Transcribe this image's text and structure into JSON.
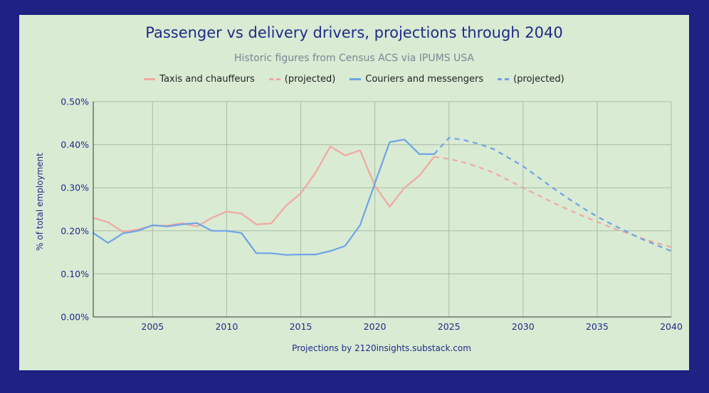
{
  "chart_data": {
    "type": "line",
    "title": "Passenger vs delivery drivers, projections through 2040",
    "subtitle": "Historic figures from Census ACS via IPUMS USA",
    "xlabel": "Projections by 2120insights.substack.com",
    "ylabel": "% of total employment",
    "xlim": [
      2001,
      2040
    ],
    "ylim": [
      0,
      0.5
    ],
    "x_ticks": [
      2005,
      2010,
      2015,
      2020,
      2025,
      2030,
      2035,
      2040
    ],
    "y_ticks": [
      0,
      0.1,
      0.2,
      0.3,
      0.4,
      0.5
    ],
    "y_tick_labels": [
      "0.00%",
      "0.10%",
      "0.20%",
      "0.30%",
      "0.40%",
      "0.50%"
    ],
    "grid": true,
    "legend_position": "top-center",
    "series": [
      {
        "name": "Taxis and chauffeurs",
        "color": "#f2a7a0",
        "dash": "solid",
        "x": [
          2001,
          2002,
          2003,
          2004,
          2005,
          2006,
          2007,
          2008,
          2009,
          2010,
          2011,
          2012,
          2013,
          2014,
          2015,
          2016,
          2017,
          2018,
          2019,
          2020,
          2021,
          2022,
          2023,
          2024
        ],
        "values": [
          0.23,
          0.22,
          0.198,
          0.203,
          0.212,
          0.212,
          0.218,
          0.21,
          0.23,
          0.245,
          0.24,
          0.215,
          0.217,
          0.258,
          0.287,
          0.335,
          0.396,
          0.375,
          0.387,
          0.305,
          0.256,
          0.3,
          0.328,
          0.372
        ]
      },
      {
        "name": "(projected)",
        "color": "#f2a7a0",
        "dash": "dashed",
        "x": [
          2024,
          2025,
          2026,
          2027,
          2028,
          2029,
          2030,
          2031,
          2032,
          2033,
          2034,
          2035,
          2036,
          2037,
          2038,
          2039,
          2040
        ],
        "values": [
          0.372,
          0.367,
          0.359,
          0.348,
          0.335,
          0.318,
          0.3,
          0.283,
          0.266,
          0.25,
          0.235,
          0.221,
          0.207,
          0.195,
          0.183,
          0.172,
          0.162
        ]
      },
      {
        "name": "Couriers and messengers",
        "color": "#6fa3e6",
        "dash": "solid",
        "x": [
          2001,
          2002,
          2003,
          2004,
          2005,
          2006,
          2007,
          2008,
          2009,
          2010,
          2011,
          2012,
          2013,
          2014,
          2015,
          2016,
          2017,
          2018,
          2019,
          2020,
          2021,
          2022,
          2023,
          2024
        ],
        "values": [
          0.195,
          0.172,
          0.194,
          0.2,
          0.213,
          0.21,
          0.215,
          0.218,
          0.2,
          0.2,
          0.195,
          0.148,
          0.148,
          0.144,
          0.145,
          0.145,
          0.153,
          0.165,
          0.213,
          0.31,
          0.406,
          0.412,
          0.378,
          0.378
        ]
      },
      {
        "name": "(projected)",
        "color": "#6fa3e6",
        "dash": "dashed",
        "x": [
          2024,
          2025,
          2026,
          2027,
          2028,
          2029,
          2030,
          2031,
          2032,
          2033,
          2034,
          2035,
          2036,
          2037,
          2038,
          2039,
          2040
        ],
        "values": [
          0.378,
          0.416,
          0.411,
          0.402,
          0.39,
          0.37,
          0.35,
          0.325,
          0.3,
          0.276,
          0.254,
          0.233,
          0.215,
          0.198,
          0.181,
          0.167,
          0.153
        ]
      }
    ]
  }
}
